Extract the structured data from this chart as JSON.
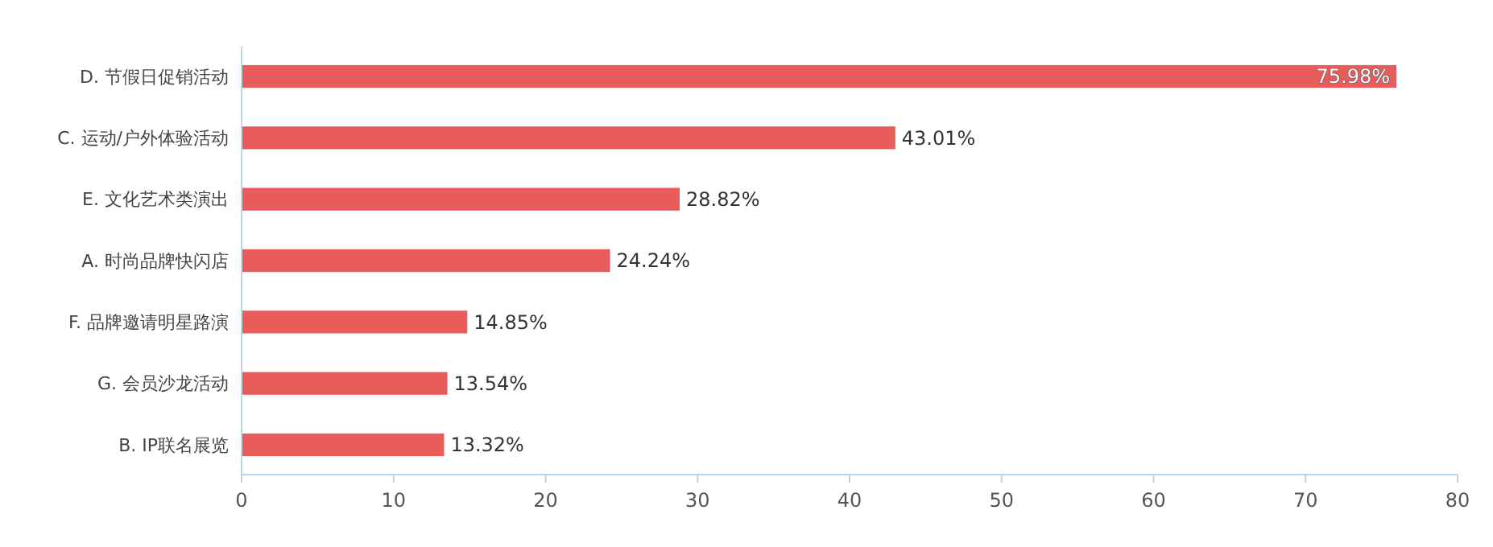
{
  "chart_data": {
    "type": "bar",
    "orientation": "horizontal",
    "categories": [
      "D. 节假日促销活动",
      "C. 运动/户外体验活动",
      "E. 文化艺术类演出",
      "A. 时尚品牌快闪店",
      "F. 品牌邀请明星路演",
      "G. 会员沙龙活动",
      "B. IP联名展览"
    ],
    "values": [
      75.98,
      43.01,
      28.82,
      24.24,
      14.85,
      13.54,
      13.32
    ],
    "value_labels": [
      "75.98%",
      "43.01%",
      "28.82%",
      "24.24%",
      "14.85%",
      "13.54%",
      "13.32%"
    ],
    "color": "#e85c5c",
    "xlim": [
      0,
      80
    ],
    "xticks": [
      0,
      10,
      20,
      30,
      40,
      50,
      60,
      70,
      80
    ],
    "grid": false
  }
}
